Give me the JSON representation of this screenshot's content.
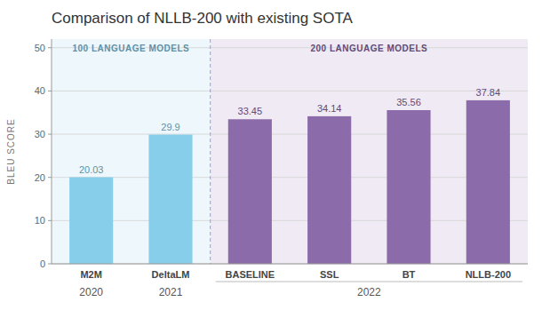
{
  "chart_data": {
    "type": "bar",
    "title": "Comparison of NLLB-200 with existing SOTA",
    "y_label": "BLEU SCORE",
    "categories": [
      "M2M",
      "DeltaLM",
      "BASELINE",
      "SSL",
      "BT",
      "NLLB-200"
    ],
    "series": [
      {
        "name": "100 LANGUAGE MODELS",
        "color": "#87ceeb",
        "values": [
          20.03,
          29.9,
          null,
          null,
          null,
          null
        ]
      },
      {
        "name": "200 LANGUAGE MODELS",
        "color": "#8b6baa",
        "values": [
          null,
          null,
          33.45,
          34.14,
          35.56,
          37.84
        ]
      }
    ],
    "annotations": [
      {
        "text": "2020",
        "categories": [
          "M2M"
        ]
      },
      {
        "text": "2021",
        "categories": [
          "DeltaLM"
        ]
      },
      {
        "text": "2022",
        "categories": [
          "BASELINE",
          "SSL",
          "BT",
          "NLLB-200"
        ]
      }
    ],
    "ylim": [
      0,
      52
    ],
    "yticks": [
      0,
      10,
      20,
      30,
      40,
      50
    ],
    "grid": true,
    "data_labels": true
  }
}
